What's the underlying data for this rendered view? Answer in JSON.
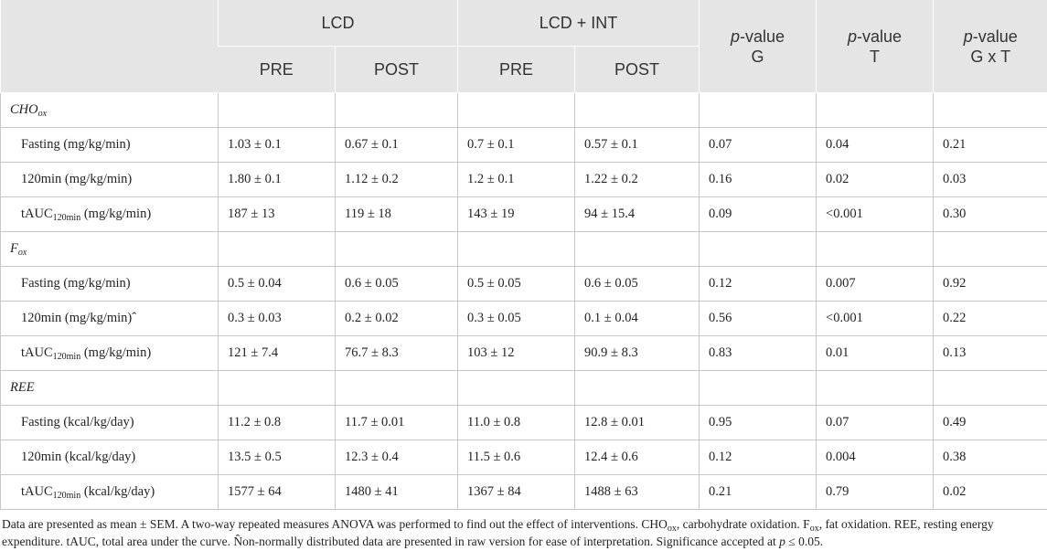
{
  "header": {
    "groups": [
      "LCD",
      "LCD + INT"
    ],
    "sub_cols": [
      "PRE",
      "POST",
      "PRE",
      "POST"
    ],
    "pvalues": [
      {
        "p": "p",
        "rest": "-value",
        "factor": "G"
      },
      {
        "p": "p",
        "rest": "-value",
        "factor": "T"
      },
      {
        "p": "p",
        "rest": "-value",
        "factor": "G x T"
      }
    ]
  },
  "sections": [
    {
      "label_main": "CHO",
      "label_sub": "ox",
      "rows": [
        {
          "label_main": "Fasting (mg/kg/min)",
          "label_sub": "",
          "label_tail": "",
          "values": [
            "1.03 ± 0.1",
            "0.67 ± 0.1",
            "0.7 ± 0.1",
            "0.57 ± 0.1",
            "0.07",
            "0.04",
            "0.21"
          ]
        },
        {
          "label_main": "120min (mg/kg/min)",
          "label_sub": "",
          "label_tail": "",
          "values": [
            "1.80 ± 0.1",
            "1.12 ± 0.2",
            "1.2 ± 0.1",
            "1.22 ± 0.2",
            "0.16",
            "0.02",
            "0.03"
          ]
        },
        {
          "label_main": "tAUC",
          "label_sub": "120min",
          "label_tail": " (mg/kg/min)",
          "values": [
            "187 ± 13",
            "119 ± 18",
            "143 ± 19",
            "94 ± 15.4",
            "0.09",
            "<0.001",
            "0.30"
          ]
        }
      ]
    },
    {
      "label_main": "F",
      "label_sub": "ox",
      "rows": [
        {
          "label_main": "Fasting (mg/kg/min)",
          "label_sub": "",
          "label_tail": "",
          "values": [
            "0.5 ± 0.04",
            "0.6 ± 0.05",
            "0.5 ± 0.05",
            "0.6 ± 0.05",
            "0.12",
            "0.007",
            "0.92"
          ]
        },
        {
          "label_main": "120min (mg/kg/min)ˆ",
          "label_sub": "",
          "label_tail": "",
          "values": [
            "0.3 ± 0.03",
            "0.2 ± 0.02",
            "0.3 ± 0.05",
            "0.1 ± 0.04",
            "0.56",
            "<0.001",
            "0.22"
          ]
        },
        {
          "label_main": "tAUC",
          "label_sub": "120min",
          "label_tail": " (mg/kg/min)",
          "values": [
            "121 ± 7.4",
            "76.7 ± 8.3",
            "103 ± 12",
            "90.9 ± 8.3",
            "0.83",
            "0.01",
            "0.13"
          ]
        }
      ]
    },
    {
      "label_main": "REE",
      "label_sub": "",
      "rows": [
        {
          "label_main": "Fasting (kcal/kg/day)",
          "label_sub": "",
          "label_tail": "",
          "values": [
            "11.2 ± 0.8",
            "11.7 ± 0.01",
            "11.0 ± 0.8",
            "12.8 ± 0.01",
            "0.95",
            "0.07",
            "0.49"
          ]
        },
        {
          "label_main": "120min (kcal/kg/day)",
          "label_sub": "",
          "label_tail": "",
          "values": [
            "13.5 ± 0.5",
            "12.3 ± 0.4",
            "11.5 ± 0.6",
            "12.4 ± 0.6",
            "0.12",
            "0.004",
            "0.38"
          ]
        },
        {
          "label_main": "tAUC",
          "label_sub": "120min",
          "label_tail": " (kcal/kg/day)",
          "values": [
            "1577 ± 64",
            "1480 ± 41",
            "1367 ± 84",
            "1488 ± 63",
            "0.21",
            "0.79",
            "0.02"
          ]
        }
      ]
    }
  ],
  "footnote": {
    "s1": "Data are presented as mean ± SEM. A two-way repeated measures ANOVA was performed to find out the effect of interventions. CHO",
    "s1_sub": "ox",
    "s2": ", carbohydrate oxidation. F",
    "s2_sub": "ox",
    "s3": ", fat oxidation. REE, resting energy expenditure. tAUC, total area under the curve. N̂on-normally distributed data are presented in raw version for ease of interpretation. Significance accepted at ",
    "s3_p": "p",
    "s4": " ≤ 0.05."
  }
}
